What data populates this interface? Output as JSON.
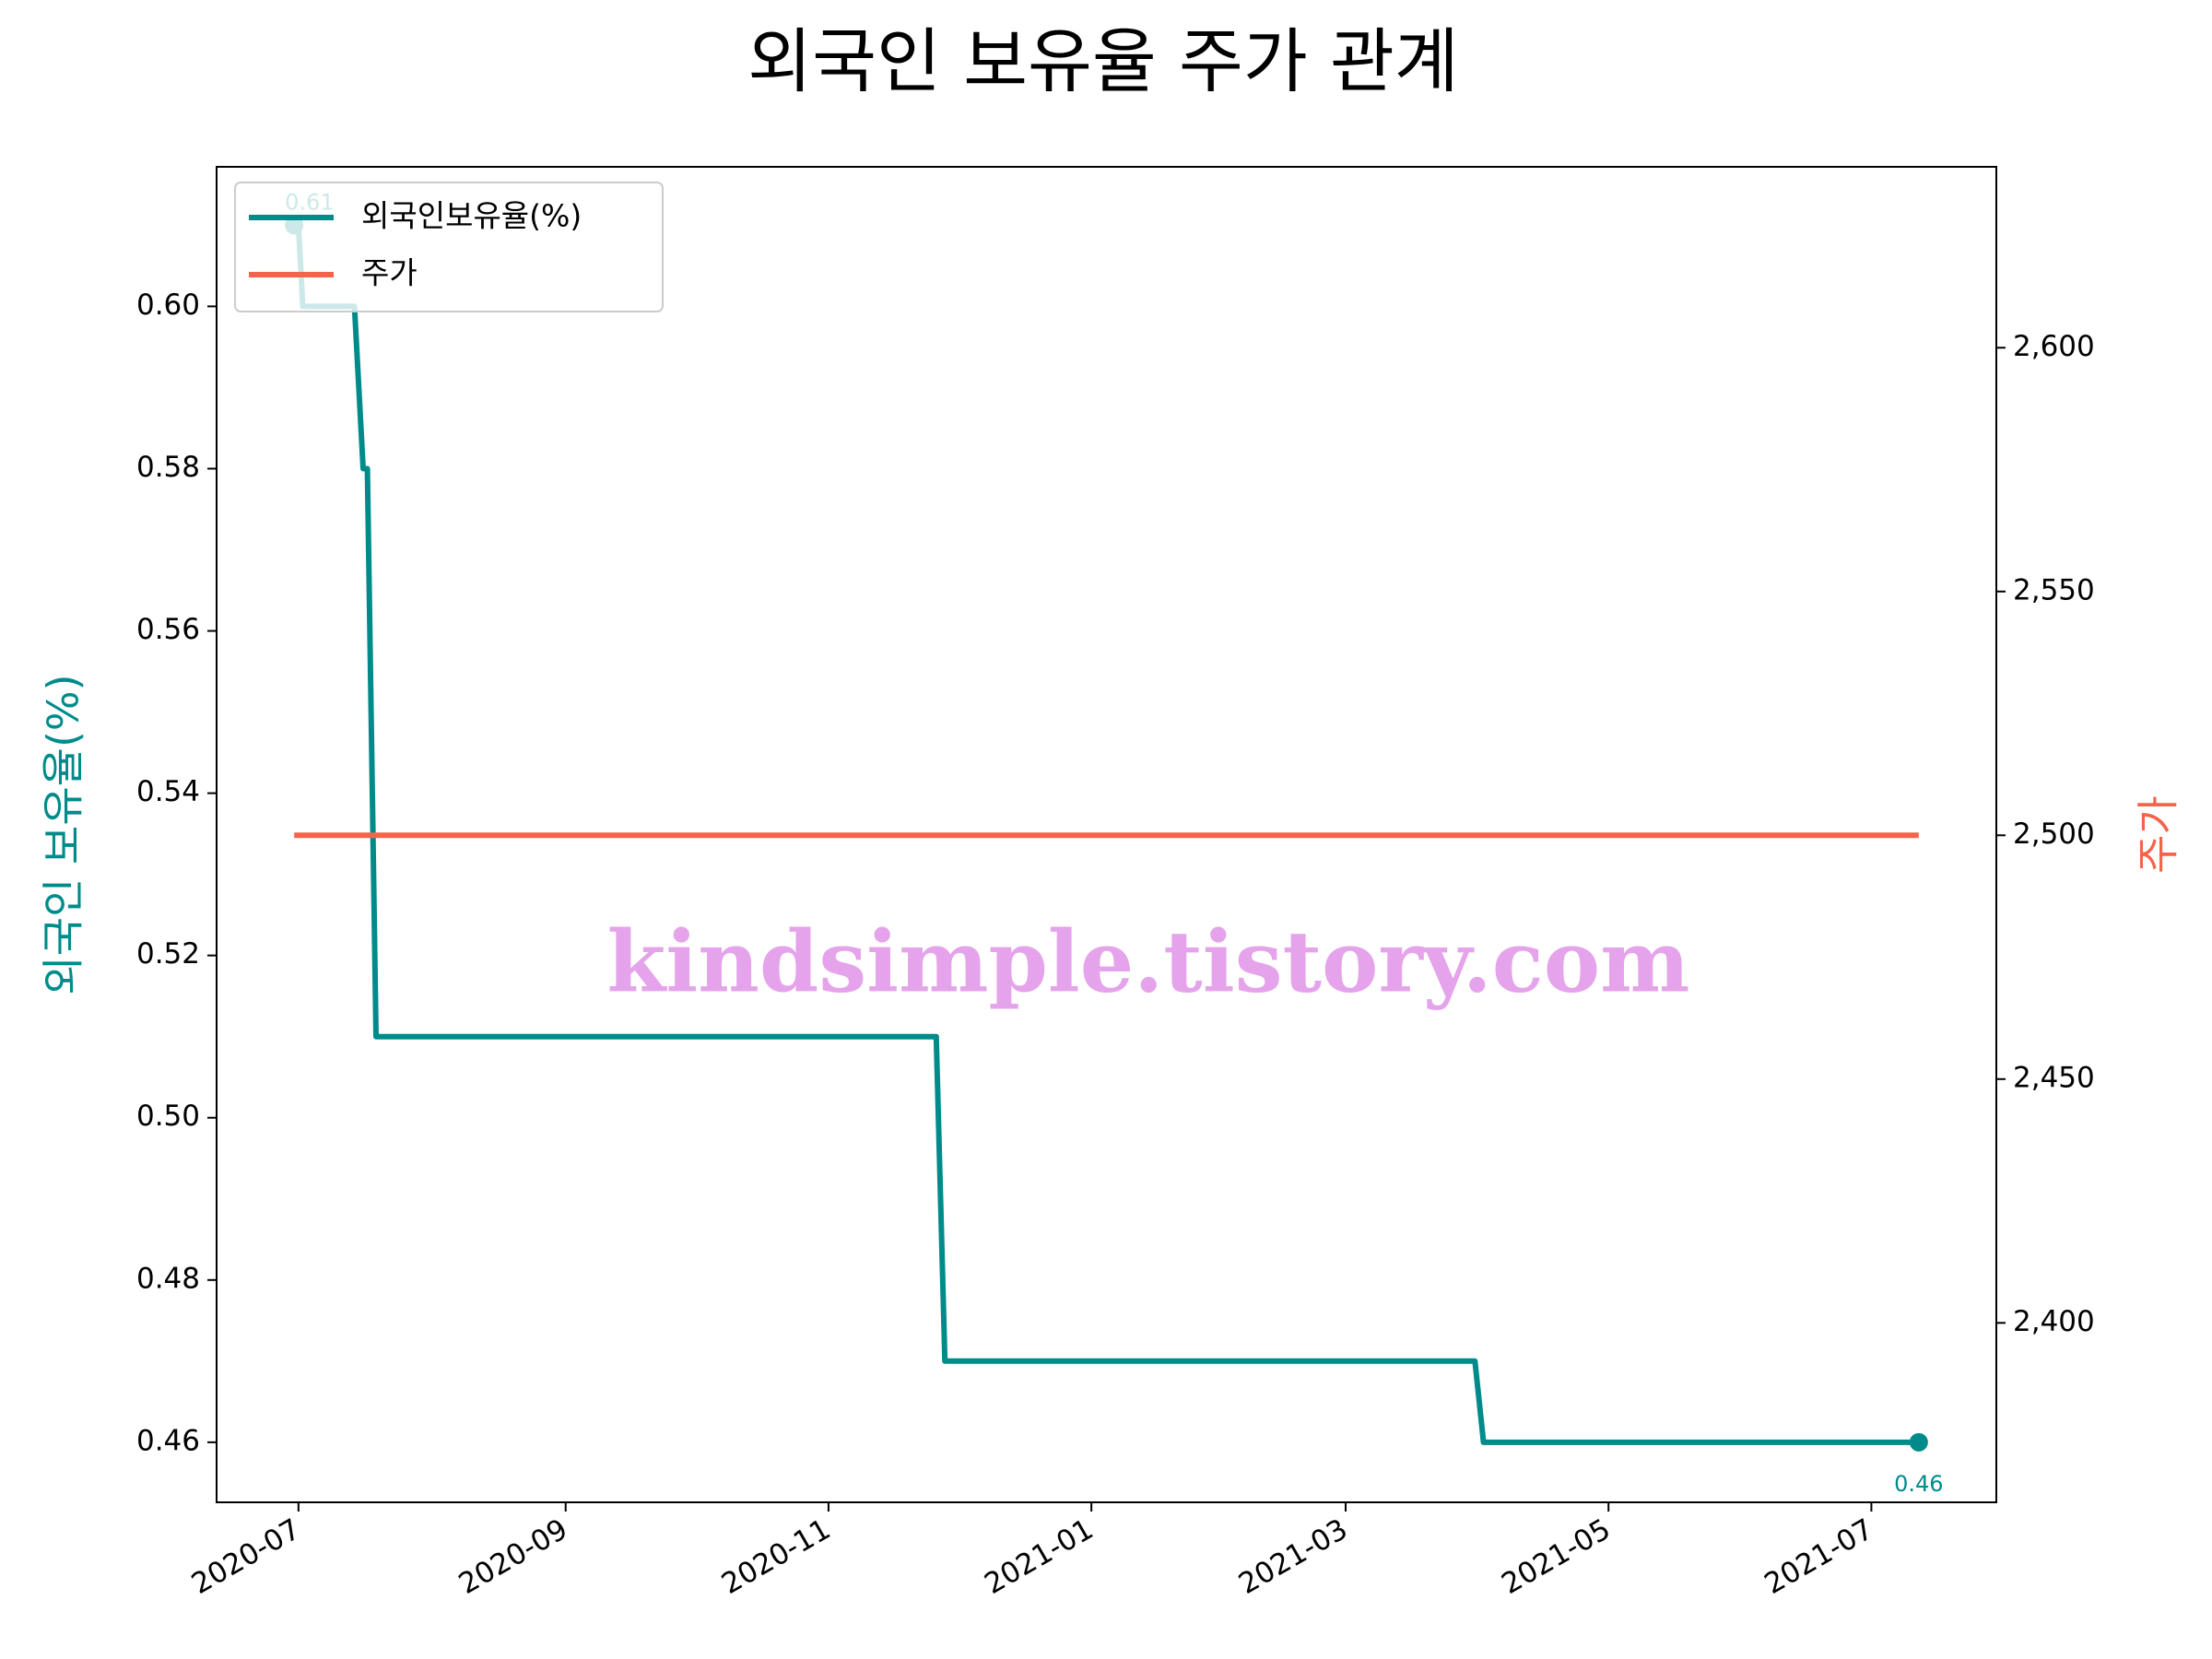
{
  "chart_data": {
    "type": "line",
    "title": "외국인 보유율 주가 관계",
    "ylabel": "외국인 보유율(%)",
    "y2label": "주가",
    "watermark": "kindsimple.tistory.com",
    "annotations": [
      "0.61",
      "0.46"
    ],
    "legend": "upper left",
    "series": [
      {
        "name": "외국인보유율(%)",
        "color": "#008b8b",
        "axis": "y",
        "x": [
          "2020-06-30",
          "2020-07-01",
          "2020-07-02",
          "2020-07-14",
          "2020-07-16",
          "2020-07-17",
          "2020-07-19",
          "2020-11-26",
          "2020-11-28",
          "2021-03-31",
          "2021-04-02",
          "2021-07-12"
        ],
        "values": [
          0.61,
          0.61,
          0.6,
          0.6,
          0.58,
          0.58,
          0.51,
          0.51,
          0.47,
          0.47,
          0.46,
          0.46
        ]
      },
      {
        "name": "주가",
        "color": "#f4634a",
        "axis": "y2",
        "x": [
          "2020-06-30",
          "2021-07-12"
        ],
        "values": [
          2500,
          2500
        ]
      }
    ],
    "xlim": [
      "2020-06-12",
      "2021-07-30"
    ],
    "xticks": [
      {
        "value": "2020-07-01",
        "label": "2020-07"
      },
      {
        "value": "2020-09-01",
        "label": "2020-09"
      },
      {
        "value": "2020-11-01",
        "label": "2020-11"
      },
      {
        "value": "2021-01-01",
        "label": "2021-01"
      },
      {
        "value": "2021-03-01",
        "label": "2021-03"
      },
      {
        "value": "2021-05-01",
        "label": "2021-05"
      },
      {
        "value": "2021-07-01",
        "label": "2021-07"
      }
    ],
    "ylim": [
      0.4526,
      0.6172
    ],
    "yticks": [
      0.46,
      0.48,
      {
        "value": 0.5,
        "label": "0.50"
      },
      0.52,
      0.54,
      0.56,
      0.58,
      {
        "value": 0.6,
        "label": "0.60"
      }
    ],
    "y2lim": [
      2363.2,
      2637.1
    ],
    "y2ticks": [
      {
        "value": 2400,
        "label": "2,400"
      },
      {
        "value": 2450,
        "label": "2,450"
      },
      {
        "value": 2500,
        "label": "2,500"
      },
      {
        "value": 2550,
        "label": "2,550"
      },
      {
        "value": 2600,
        "label": "2,600"
      }
    ]
  }
}
